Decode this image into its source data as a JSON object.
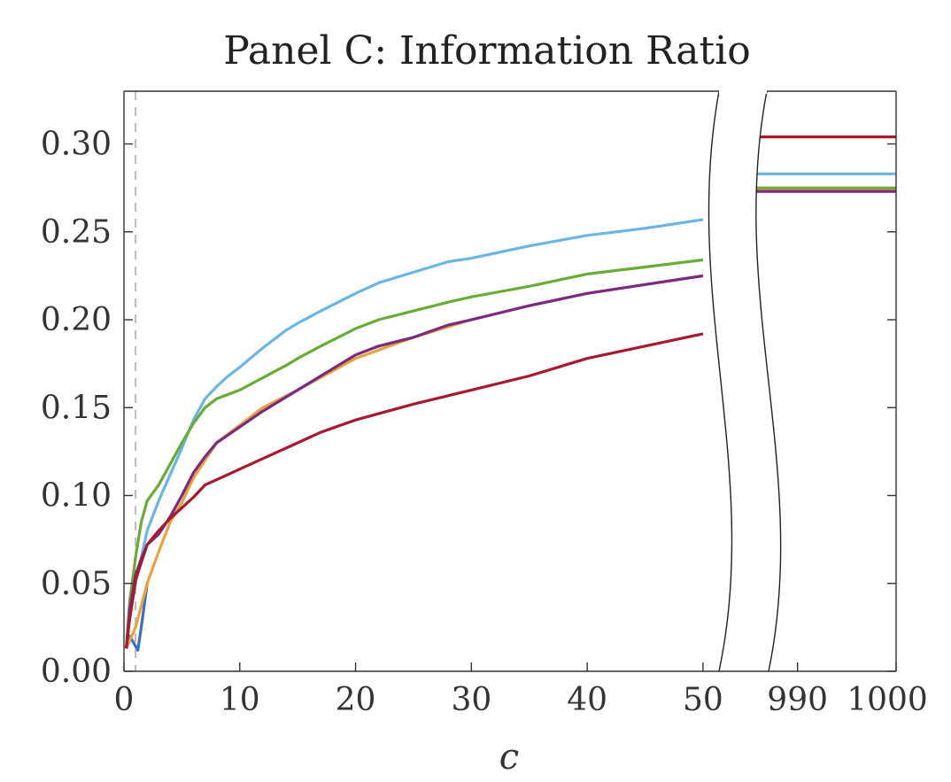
{
  "chart_data": {
    "type": "line",
    "title": "Panel C: Information Ratio",
    "xlabel": "c",
    "ylabel": "",
    "ylim": [
      0,
      0.33
    ],
    "grid": false,
    "legend": "none",
    "axis_break": {
      "left_range": [
        0,
        51
      ],
      "right_range": [
        985,
        1000
      ]
    },
    "reference_line_x": 1,
    "x_ticks": [
      {
        "value": 0,
        "label": "0",
        "side": "left"
      },
      {
        "value": 10,
        "label": "10",
        "side": "left"
      },
      {
        "value": 20,
        "label": "20",
        "side": "left"
      },
      {
        "value": 30,
        "label": "30",
        "side": "left"
      },
      {
        "value": 40,
        "label": "40",
        "side": "left"
      },
      {
        "value": 50,
        "label": "50",
        "side": "left"
      },
      {
        "value": 990,
        "label": "990",
        "side": "right"
      },
      {
        "value": 1000,
        "label": "1000",
        "side": "right"
      }
    ],
    "y_ticks": [
      {
        "value": 0.0,
        "label": "0.00"
      },
      {
        "value": 0.05,
        "label": "0.05"
      },
      {
        "value": 0.1,
        "label": "0.10"
      },
      {
        "value": 0.15,
        "label": "0.15"
      },
      {
        "value": 0.2,
        "label": "0.20"
      },
      {
        "value": 0.25,
        "label": "0.25"
      },
      {
        "value": 0.3,
        "label": "0.30"
      }
    ],
    "series": [
      {
        "color": "#3a6fc4",
        "left": [
          [
            0.2,
            0.013
          ],
          [
            0.5,
            0.02
          ],
          [
            1.2,
            0.012
          ],
          [
            1.6,
            0.03
          ],
          [
            2,
            0.05
          ]
        ],
        "right": []
      },
      {
        "color": "#e8a33a",
        "left": [
          [
            0.2,
            0.013
          ],
          [
            1,
            0.025
          ],
          [
            2,
            0.05
          ],
          [
            3,
            0.068
          ],
          [
            4,
            0.085
          ],
          [
            5,
            0.096
          ],
          [
            6,
            0.11
          ],
          [
            7,
            0.12
          ],
          [
            8,
            0.13
          ],
          [
            10,
            0.14
          ],
          [
            12,
            0.15
          ],
          [
            15,
            0.16
          ],
          [
            20,
            0.178
          ],
          [
            25,
            0.19
          ],
          [
            30,
            0.2
          ],
          [
            35,
            0.208
          ],
          [
            40,
            0.215
          ],
          [
            45,
            0.22
          ],
          [
            50,
            0.225
          ]
        ],
        "right": [
          [
            985,
            0.2735
          ],
          [
            1000,
            0.2735
          ]
        ]
      },
      {
        "color": "#6bb5e6",
        "left": [
          [
            0.2,
            0.013
          ],
          [
            0.5,
            0.03
          ],
          [
            1,
            0.05
          ],
          [
            1.5,
            0.065
          ],
          [
            2,
            0.08
          ],
          [
            3,
            0.097
          ],
          [
            4,
            0.112
          ],
          [
            5,
            0.127
          ],
          [
            6,
            0.143
          ],
          [
            7,
            0.155
          ],
          [
            8,
            0.162
          ],
          [
            9,
            0.168
          ],
          [
            10,
            0.173
          ],
          [
            12,
            0.184
          ],
          [
            14,
            0.194
          ],
          [
            15,
            0.198
          ],
          [
            17,
            0.205
          ],
          [
            20,
            0.215
          ],
          [
            22,
            0.221
          ],
          [
            25,
            0.227
          ],
          [
            28,
            0.233
          ],
          [
            30,
            0.235
          ],
          [
            35,
            0.242
          ],
          [
            40,
            0.248
          ],
          [
            45,
            0.252
          ],
          [
            50,
            0.257
          ]
        ],
        "right": [
          [
            985,
            0.283
          ],
          [
            1000,
            0.283
          ]
        ]
      },
      {
        "color": "#6aab36",
        "left": [
          [
            0.2,
            0.013
          ],
          [
            0.5,
            0.04
          ],
          [
            1,
            0.065
          ],
          [
            1.5,
            0.085
          ],
          [
            2,
            0.097
          ],
          [
            3,
            0.106
          ],
          [
            4,
            0.118
          ],
          [
            5,
            0.13
          ],
          [
            6,
            0.141
          ],
          [
            7,
            0.15
          ],
          [
            8,
            0.155
          ],
          [
            10,
            0.16
          ],
          [
            12,
            0.167
          ],
          [
            14,
            0.174
          ],
          [
            15,
            0.178
          ],
          [
            17,
            0.185
          ],
          [
            20,
            0.195
          ],
          [
            22,
            0.2
          ],
          [
            25,
            0.205
          ],
          [
            28,
            0.21
          ],
          [
            30,
            0.213
          ],
          [
            35,
            0.219
          ],
          [
            40,
            0.226
          ],
          [
            45,
            0.23
          ],
          [
            50,
            0.234
          ]
        ],
        "right": [
          [
            985,
            0.275
          ],
          [
            1000,
            0.275
          ]
        ]
      },
      {
        "color": "#7a2a80",
        "left": [
          [
            0.2,
            0.013
          ],
          [
            0.5,
            0.035
          ],
          [
            1,
            0.055
          ],
          [
            1.5,
            0.064
          ],
          [
            2,
            0.072
          ],
          [
            3,
            0.078
          ],
          [
            4,
            0.088
          ],
          [
            5,
            0.1
          ],
          [
            6,
            0.113
          ],
          [
            7,
            0.122
          ],
          [
            8,
            0.13
          ],
          [
            10,
            0.139
          ],
          [
            12,
            0.148
          ],
          [
            15,
            0.16
          ],
          [
            17,
            0.168
          ],
          [
            20,
            0.18
          ],
          [
            22,
            0.185
          ],
          [
            25,
            0.19
          ],
          [
            28,
            0.197
          ],
          [
            30,
            0.2
          ],
          [
            35,
            0.208
          ],
          [
            40,
            0.215
          ],
          [
            45,
            0.22
          ],
          [
            50,
            0.225
          ]
        ],
        "right": [
          [
            985,
            0.273
          ],
          [
            1000,
            0.273
          ]
        ]
      },
      {
        "color": "#a8182e",
        "left": [
          [
            0.2,
            0.013
          ],
          [
            0.5,
            0.03
          ],
          [
            1,
            0.052
          ],
          [
            1.5,
            0.062
          ],
          [
            2,
            0.072
          ],
          [
            3,
            0.08
          ],
          [
            4,
            0.087
          ],
          [
            5,
            0.093
          ],
          [
            6,
            0.099
          ],
          [
            7,
            0.106
          ],
          [
            8,
            0.109
          ],
          [
            10,
            0.115
          ],
          [
            12,
            0.121
          ],
          [
            15,
            0.13
          ],
          [
            17,
            0.136
          ],
          [
            20,
            0.143
          ],
          [
            25,
            0.152
          ],
          [
            30,
            0.16
          ],
          [
            35,
            0.168
          ],
          [
            40,
            0.178
          ],
          [
            45,
            0.185
          ],
          [
            50,
            0.192
          ]
        ],
        "right": [
          [
            985,
            0.304
          ],
          [
            1000,
            0.304
          ]
        ]
      }
    ]
  }
}
